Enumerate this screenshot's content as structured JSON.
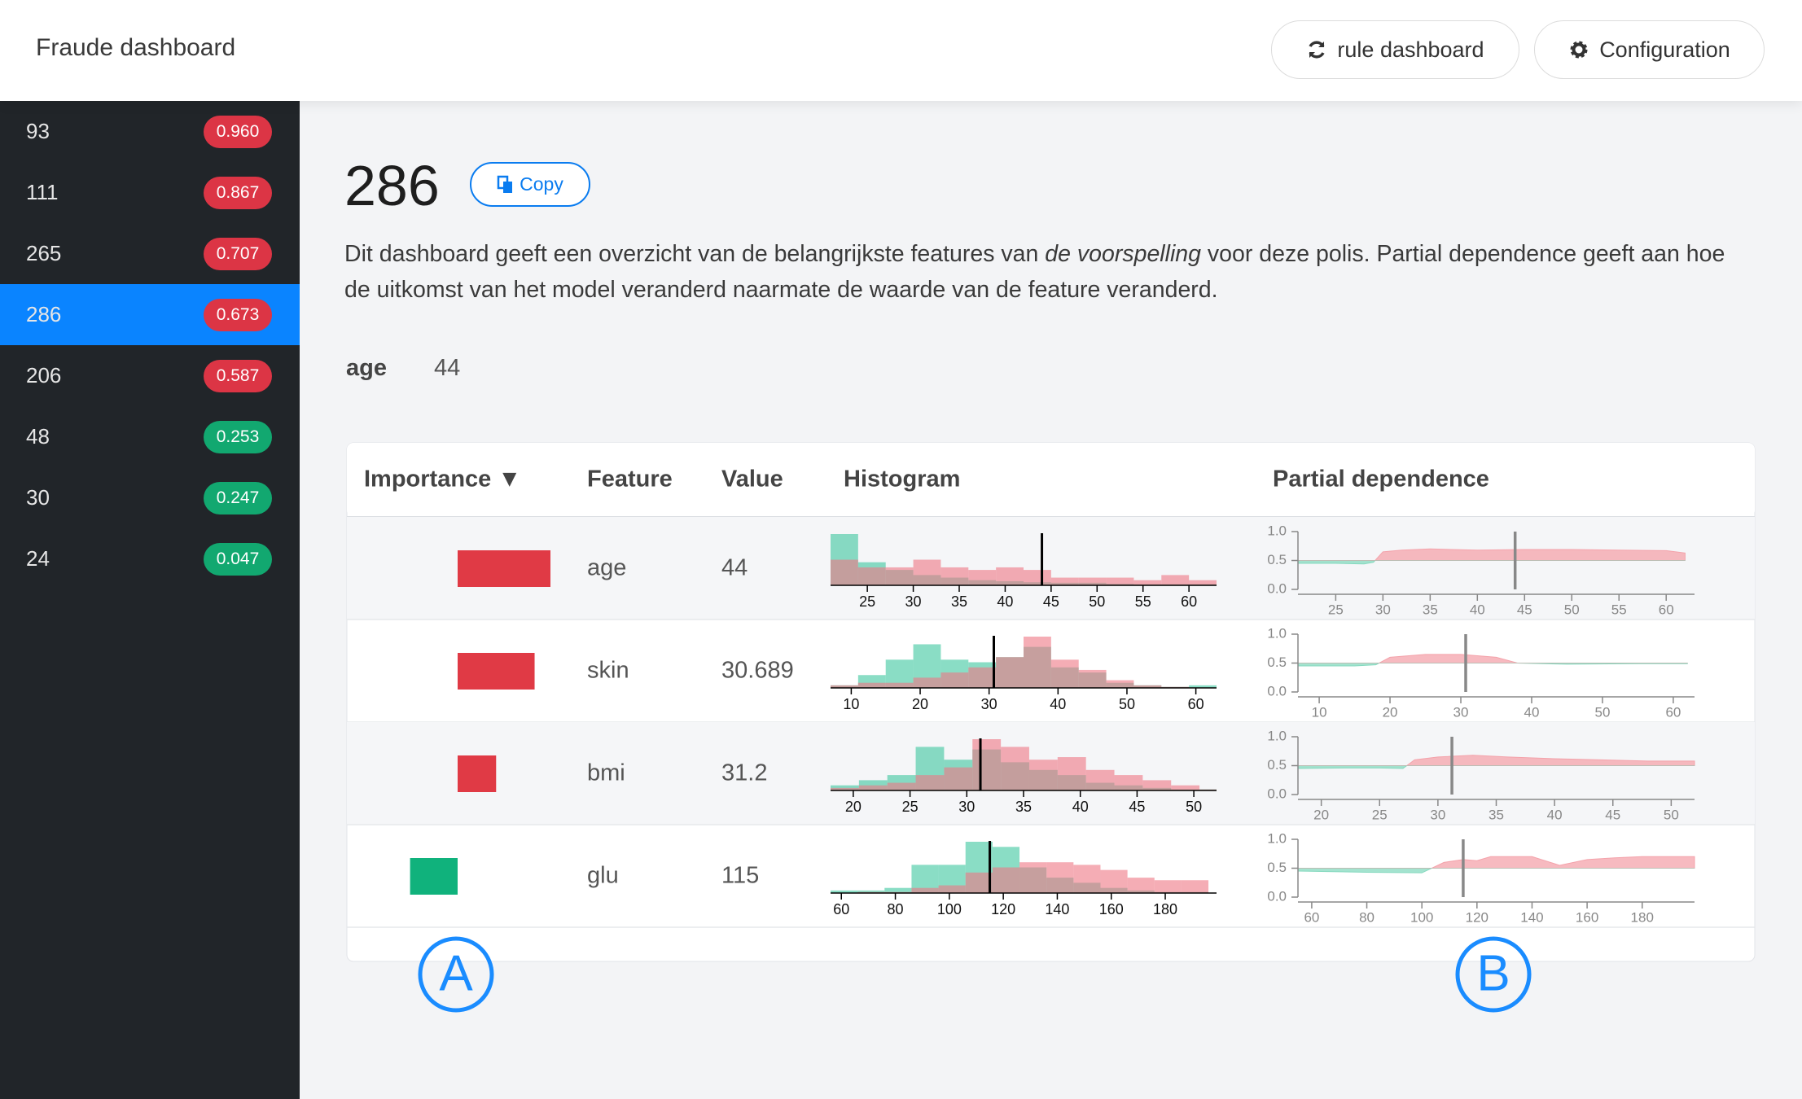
{
  "header": {
    "title": "Fraude dashboard",
    "buttons": [
      "rule dashboard",
      "Configuration"
    ]
  },
  "sidebar": {
    "active": 3,
    "items": [
      {
        "id": "93",
        "score": "0.960",
        "color": "#dc3545"
      },
      {
        "id": "111",
        "score": "0.867",
        "color": "#dc3545"
      },
      {
        "id": "265",
        "score": "0.707",
        "color": "#dc3545"
      },
      {
        "id": "286",
        "score": "0.673",
        "color": "#dc3545"
      },
      {
        "id": "206",
        "score": "0.587",
        "color": "#dc3545"
      },
      {
        "id": "48",
        "score": "0.253",
        "color": "#12a870"
      },
      {
        "id": "30",
        "score": "0.247",
        "color": "#12a870"
      },
      {
        "id": "24",
        "score": "0.047",
        "color": "#12a870"
      }
    ]
  },
  "page": {
    "title": "286",
    "copy": "Copy",
    "description": [
      "Dit dashboard geeft een overzicht van de belangrijkste features van ",
      "de voorspelling",
      " voor deze polis. Partial dependence geeft aan hoe de uitkomst van het model veranderd naarmate de waarde van de feature veranderd."
    ],
    "field": {
      "label": "age",
      "value": 44
    }
  },
  "table": {
    "columns": [
      "Importance ▼",
      "Feature",
      "Value",
      "Histogram",
      "Partial dependence"
    ],
    "importance_colors": {
      "positive": "#e03a45",
      "negative": "#10b27c"
    },
    "rows": [
      {
        "importance": 0.082,
        "feature": "age",
        "value": 44,
        "histogram": {
          "xlim": [
            21,
            63
          ],
          "xticks": [
            25,
            30,
            35,
            40,
            45,
            50,
            55,
            60
          ],
          "bins": [
            21,
            24,
            27,
            30,
            33,
            36,
            39,
            42,
            45,
            48,
            51,
            54,
            57,
            60,
            63
          ],
          "series": [
            {
              "color": "#3cc79f",
              "values": [
                1.0,
                0.45,
                0.3,
                0.2,
                0.15,
                0.1,
                0.08,
                0.06,
                0.05,
                0.05,
                0.03,
                0.02,
                0.02,
                0.02
              ]
            },
            {
              "color": "#ef7683",
              "values": [
                0.5,
                0.35,
                0.35,
                0.5,
                0.35,
                0.3,
                0.35,
                0.3,
                0.15,
                0.15,
                0.15,
                0.1,
                0.2,
                0.1
              ]
            }
          ]
        },
        "pdp": {
          "xlim": [
            21,
            63
          ],
          "xticks": [
            25,
            30,
            35,
            40,
            45,
            50,
            55,
            60
          ],
          "ylim": [
            0,
            1
          ],
          "yticks": [
            {
              "value": 0,
              "label": "0.0"
            },
            {
              "value": 0.5,
              "label": "0.5"
            },
            {
              "value": 1,
              "label": "1.0"
            }
          ],
          "baseline": 0.5,
          "colors": {
            "above": "#f4a3ab",
            "below": "#86d9bf"
          },
          "x": [
            21,
            25,
            28,
            29,
            30,
            32,
            35,
            40,
            45,
            50,
            55,
            60,
            62
          ],
          "values": [
            0.45,
            0.45,
            0.44,
            0.47,
            0.65,
            0.68,
            0.7,
            0.68,
            0.69,
            0.69,
            0.68,
            0.67,
            0.63
          ]
        }
      },
      {
        "importance": 0.068,
        "feature": "skin",
        "value": 30.689,
        "histogram": {
          "xlim": [
            7,
            63
          ],
          "xticks": [
            10,
            20,
            30,
            40,
            50,
            60
          ],
          "bins": [
            7,
            11,
            15,
            19,
            23,
            27,
            31,
            35,
            39,
            43,
            47,
            51,
            55,
            59,
            63
          ],
          "series": [
            {
              "color": "#3cc79f",
              "values": [
                0.05,
                0.25,
                0.55,
                0.85,
                0.55,
                0.5,
                0.6,
                0.8,
                0.4,
                0.3,
                0.1,
                0.05,
                0.02,
                0.05
              ]
            },
            {
              "color": "#ef7683",
              "values": [
                0.05,
                0.1,
                0.1,
                0.2,
                0.3,
                0.4,
                0.6,
                1.0,
                0.55,
                0.35,
                0.15,
                0.05,
                0.02,
                0.0
              ]
            }
          ]
        },
        "pdp": {
          "xlim": [
            7,
            63
          ],
          "xticks": [
            10,
            20,
            30,
            40,
            50,
            60
          ],
          "ylim": [
            0,
            1
          ],
          "yticks": [
            {
              "value": 0,
              "label": "0.0"
            },
            {
              "value": 0.5,
              "label": "0.5"
            },
            {
              "value": 1,
              "label": "1.0"
            }
          ],
          "baseline": 0.5,
          "colors": {
            "above": "#f4a3ab",
            "below": "#86d9bf"
          },
          "x": [
            7,
            15,
            18,
            20,
            25,
            30,
            35,
            38,
            45,
            55,
            62
          ],
          "values": [
            0.45,
            0.45,
            0.47,
            0.6,
            0.65,
            0.65,
            0.6,
            0.5,
            0.48,
            0.49,
            0.49
          ]
        }
      },
      {
        "importance": 0.034,
        "feature": "bmi",
        "value": 31.2,
        "histogram": {
          "xlim": [
            18,
            52
          ],
          "xticks": [
            20,
            25,
            30,
            35,
            40,
            45,
            50
          ],
          "bins": [
            18,
            20.5,
            23,
            25.5,
            28,
            30.5,
            33,
            35.5,
            38,
            40.5,
            43,
            45.5,
            48,
            50.5,
            52
          ],
          "series": [
            {
              "color": "#3cc79f",
              "values": [
                0.1,
                0.2,
                0.3,
                0.85,
                0.6,
                0.8,
                0.55,
                0.4,
                0.3,
                0.15,
                0.1,
                0.05,
                0.02,
                0.02
              ]
            },
            {
              "color": "#ef7683",
              "values": [
                0.05,
                0.1,
                0.15,
                0.3,
                0.45,
                1.0,
                0.85,
                0.6,
                0.65,
                0.4,
                0.3,
                0.2,
                0.1,
                0.02
              ]
            }
          ]
        },
        "pdp": {
          "xlim": [
            18,
            52
          ],
          "xticks": [
            20,
            25,
            30,
            35,
            40,
            45,
            50
          ],
          "ylim": [
            0,
            1
          ],
          "yticks": [
            {
              "value": 0,
              "label": "0.0"
            },
            {
              "value": 0.5,
              "label": "0.5"
            },
            {
              "value": 1,
              "label": "1.0"
            }
          ],
          "baseline": 0.5,
          "colors": {
            "above": "#f4a3ab",
            "below": "#86d9bf"
          },
          "x": [
            18,
            22,
            25,
            27,
            28,
            30,
            33,
            36,
            40,
            44,
            48,
            52
          ],
          "values": [
            0.45,
            0.46,
            0.46,
            0.45,
            0.6,
            0.65,
            0.68,
            0.65,
            0.62,
            0.6,
            0.58,
            0.58
          ]
        }
      },
      {
        "importance": -0.042,
        "feature": "glu",
        "value": 115,
        "histogram": {
          "xlim": [
            56,
            199
          ],
          "xticks": [
            60,
            80,
            100,
            120,
            140,
            160,
            180
          ],
          "bins": [
            56,
            66,
            76,
            86,
            96,
            106,
            116,
            126,
            136,
            146,
            156,
            166,
            176,
            186,
            196
          ],
          "series": [
            {
              "color": "#3cc79f",
              "values": [
                0.05,
                0.05,
                0.1,
                0.55,
                0.55,
                1.0,
                0.9,
                0.5,
                0.3,
                0.2,
                0.1,
                0.05,
                0.02,
                0.02
              ]
            },
            {
              "color": "#ef7683",
              "values": [
                0.0,
                0.02,
                0.02,
                0.1,
                0.15,
                0.4,
                0.5,
                0.6,
                0.6,
                0.55,
                0.45,
                0.3,
                0.25,
                0.25
              ]
            }
          ]
        },
        "pdp": {
          "xlim": [
            55,
            199
          ],
          "xticks": [
            60,
            80,
            100,
            120,
            140,
            160,
            180
          ],
          "ylim": [
            0,
            1
          ],
          "yticks": [
            {
              "value": 0,
              "label": "0.0"
            },
            {
              "value": 0.5,
              "label": "0.5"
            },
            {
              "value": 1,
              "label": "1.0"
            }
          ],
          "baseline": 0.5,
          "colors": {
            "above": "#f4a3ab",
            "below": "#86d9bf"
          },
          "x": [
            55,
            80,
            100,
            108,
            115,
            120,
            125,
            140,
            150,
            160,
            170,
            180,
            199
          ],
          "values": [
            0.45,
            0.43,
            0.42,
            0.6,
            0.65,
            0.63,
            0.7,
            0.7,
            0.55,
            0.65,
            0.68,
            0.7,
            0.7
          ]
        }
      }
    ]
  },
  "annotations": [
    "A",
    "B"
  ]
}
